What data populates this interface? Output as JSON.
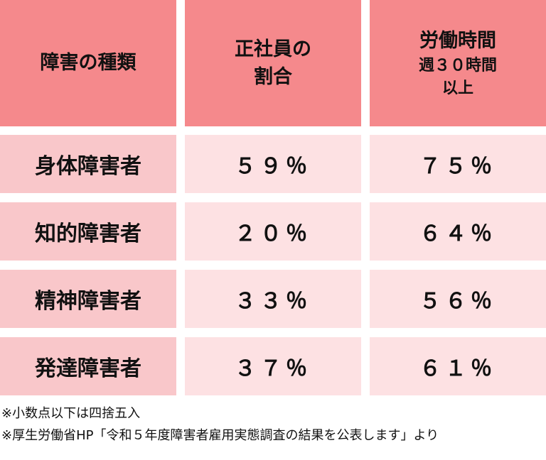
{
  "table": {
    "header": [
      {
        "lines": [
          "障害の種類"
        ]
      },
      {
        "lines": [
          "正社員の",
          "割合"
        ]
      },
      {
        "lines": [
          "労働時間"
        ],
        "sub_lines": [
          "週３０時間",
          "以上"
        ]
      }
    ],
    "rows": [
      [
        "身体障害者",
        "５９％",
        "７５％"
      ],
      [
        "知的障害者",
        "２０％",
        "６４％"
      ],
      [
        "精神障害者",
        "３３％",
        "５６％"
      ],
      [
        "発達障害者",
        "３７％",
        "６１％"
      ]
    ]
  },
  "notes": [
    "※小数点以下は四捨五入",
    "※厚生労働省HP「令和５年度障害者雇用実態調査の結果を公表します」より"
  ]
}
